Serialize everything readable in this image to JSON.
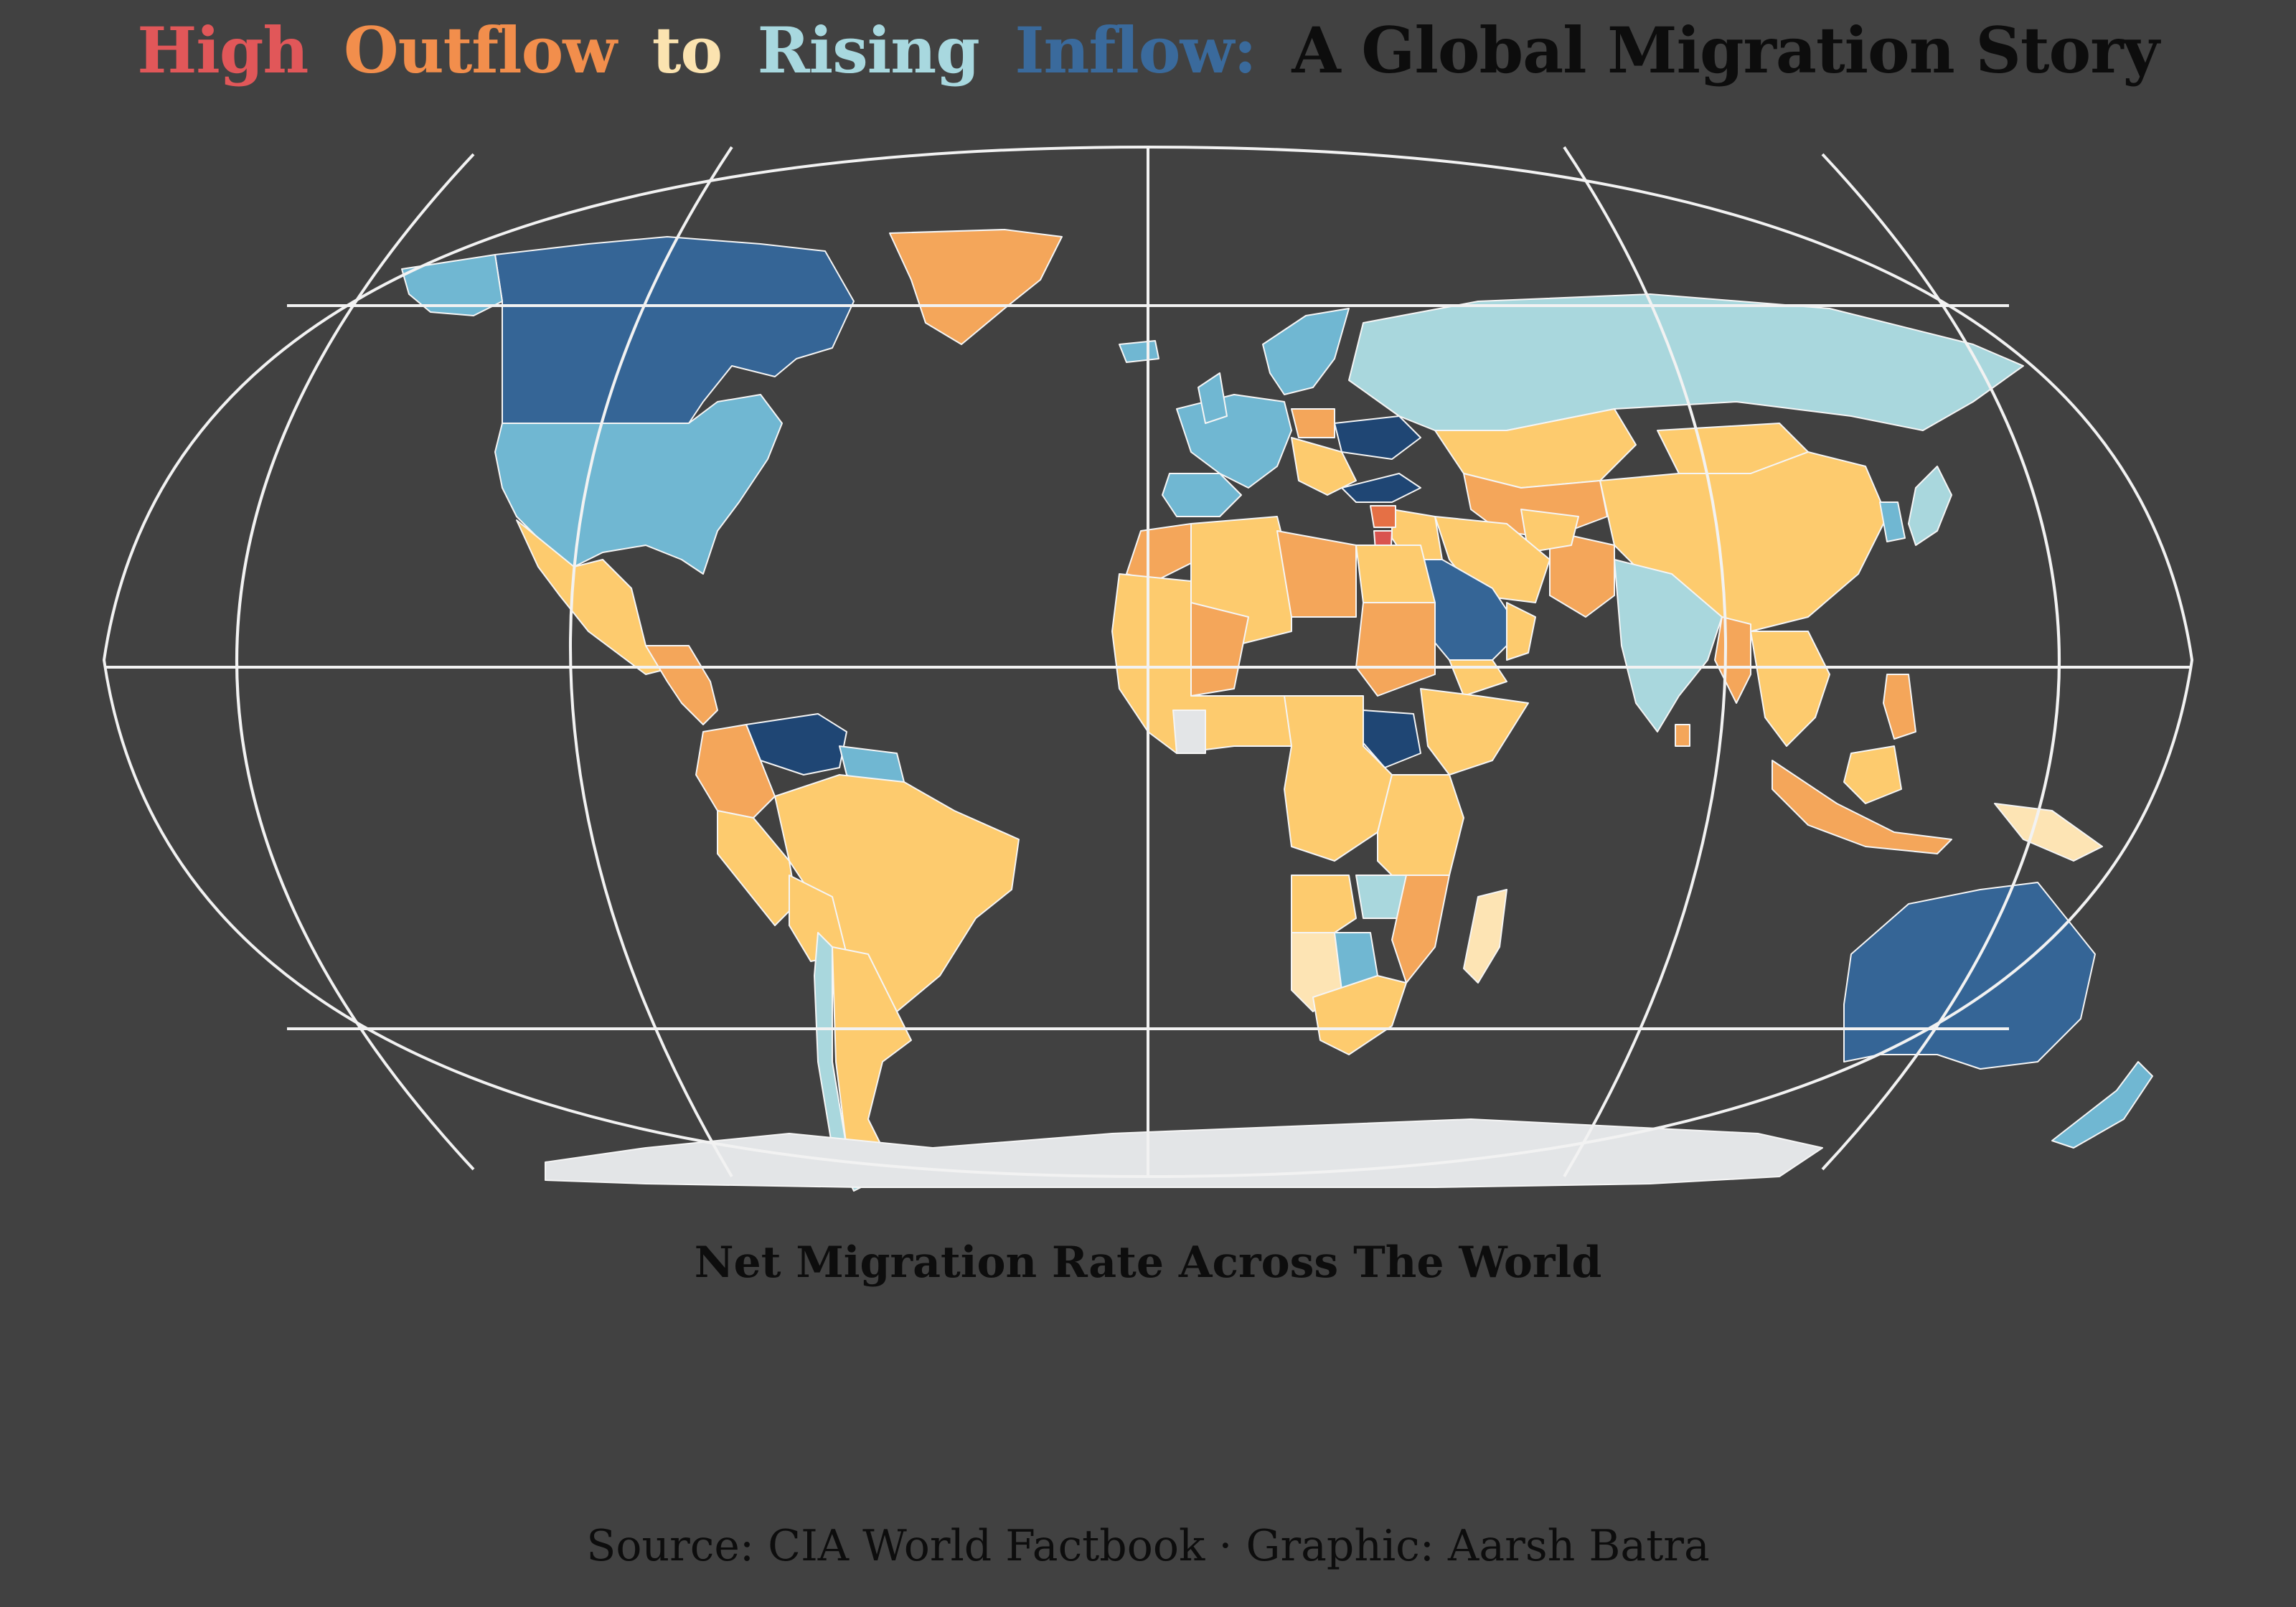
{
  "title": {
    "parts": [
      {
        "text": "High",
        "color": "#e15759"
      },
      {
        "text": "Outflow",
        "color": "#f28e4c"
      },
      {
        "text": "to",
        "color": "#fbe3b0"
      },
      {
        "text": "Rising",
        "color": "#a8d8df"
      },
      {
        "text": "Inflow:",
        "color": "#3a6a9c"
      },
      {
        "text": "A Global Migration Story",
        "color": "#0d0d0d"
      }
    ]
  },
  "subtitle": "Net Migration Rate Across The World",
  "caption": "Source: CIA World Factbook · Graphic: Aarsh Batra",
  "colors": {
    "background": "#414141",
    "graticule": "#f2f2f2",
    "border": "#f5f5f5",
    "strong_inflow": "#1f4674",
    "inflow": "#356596",
    "moderate_inflow": "#70b7d2",
    "slight_inflow": "#a9d7dd",
    "neutral": "#fde4b4",
    "slight_outflow": "#fdcb6e",
    "outflow": "#f4a65a",
    "high_outflow": "#e57045",
    "extreme_outflow": "#d9534f",
    "no_data": "#e3e5e7"
  },
  "regions": [
    {
      "name": "Canada",
      "class": "inflow"
    },
    {
      "name": "United States",
      "class": "moderate_inflow"
    },
    {
      "name": "Alaska",
      "class": "moderate_inflow"
    },
    {
      "name": "Greenland",
      "class": "outflow"
    },
    {
      "name": "Mexico",
      "class": "slight_outflow"
    },
    {
      "name": "Central America",
      "class": "outflow"
    },
    {
      "name": "Venezuela",
      "class": "strong_inflow"
    },
    {
      "name": "Colombia",
      "class": "outflow"
    },
    {
      "name": "Guianas",
      "class": "moderate_inflow"
    },
    {
      "name": "Brazil",
      "class": "slight_outflow"
    },
    {
      "name": "Peru",
      "class": "slight_outflow"
    },
    {
      "name": "Bolivia",
      "class": "slight_outflow"
    },
    {
      "name": "Chile",
      "class": "slight_inflow"
    },
    {
      "name": "Argentina",
      "class": "slight_outflow"
    },
    {
      "name": "Western Europe",
      "class": "moderate_inflow"
    },
    {
      "name": "Iberia",
      "class": "moderate_inflow"
    },
    {
      "name": "Scandinavia",
      "class": "moderate_inflow"
    },
    {
      "name": "United Kingdom",
      "class": "moderate_inflow"
    },
    {
      "name": "Iceland",
      "class": "moderate_inflow"
    },
    {
      "name": "Ukraine",
      "class": "strong_inflow"
    },
    {
      "name": "Poland",
      "class": "outflow"
    },
    {
      "name": "Balkans",
      "class": "slight_outflow"
    },
    {
      "name": "Turkey",
      "class": "strong_inflow"
    },
    {
      "name": "Russia",
      "class": "slight_inflow"
    },
    {
      "name": "Kazakhstan",
      "class": "slight_outflow"
    },
    {
      "name": "Central Asia",
      "class": "outflow"
    },
    {
      "name": "Mongolia",
      "class": "slight_outflow"
    },
    {
      "name": "China",
      "class": "slight_outflow"
    },
    {
      "name": "Korea",
      "class": "moderate_inflow"
    },
    {
      "name": "Japan",
      "class": "slight_inflow"
    },
    {
      "name": "India",
      "class": "slight_inflow"
    },
    {
      "name": "Pakistan",
      "class": "outflow"
    },
    {
      "name": "Afghanistan",
      "class": "slight_outflow"
    },
    {
      "name": "Iran",
      "class": "slight_outflow"
    },
    {
      "name": "Iraq",
      "class": "slight_outflow"
    },
    {
      "name": "Syria",
      "class": "high_outflow"
    },
    {
      "name": "Jordan",
      "class": "extreme_outflow"
    },
    {
      "name": "Saudi Arabia",
      "class": "inflow"
    },
    {
      "name": "Yemen",
      "class": "slight_outflow"
    },
    {
      "name": "Oman",
      "class": "slight_outflow"
    },
    {
      "name": "Southeast Asia",
      "class": "slight_outflow"
    },
    {
      "name": "Myanmar",
      "class": "outflow"
    },
    {
      "name": "Sri Lanka",
      "class": "outflow"
    },
    {
      "name": "Philippines",
      "class": "outflow"
    },
    {
      "name": "Indonesia",
      "class": "outflow"
    },
    {
      "name": "Borneo",
      "class": "slight_outflow"
    },
    {
      "name": "New Guinea",
      "class": "neutral"
    },
    {
      "name": "Australia",
      "class": "inflow"
    },
    {
      "name": "New Zealand",
      "class": "moderate_inflow"
    },
    {
      "name": "Morocco",
      "class": "outflow"
    },
    {
      "name": "Algeria",
      "class": "slight_outflow"
    },
    {
      "name": "Libya",
      "class": "outflow"
    },
    {
      "name": "Egypt",
      "class": "slight_outflow"
    },
    {
      "name": "Sudan",
      "class": "outflow"
    },
    {
      "name": "South Sudan",
      "class": "strong_inflow"
    },
    {
      "name": "Mali",
      "class": "outflow"
    },
    {
      "name": "West Africa",
      "class": "slight_outflow"
    },
    {
      "name": "Ivory Coast",
      "class": "no_data"
    },
    {
      "name": "Horn of Africa",
      "class": "slight_outflow"
    },
    {
      "name": "Central Africa",
      "class": "slight_outflow"
    },
    {
      "name": "East Africa",
      "class": "slight_outflow"
    },
    {
      "name": "Angola",
      "class": "slight_outflow"
    },
    {
      "name": "Namibia",
      "class": "neutral"
    },
    {
      "name": "Botswana",
      "class": "moderate_inflow"
    },
    {
      "name": "Zambia",
      "class": "slight_inflow"
    },
    {
      "name": "Mozambique",
      "class": "outflow"
    },
    {
      "name": "South Africa",
      "class": "slight_outflow"
    },
    {
      "name": "Madagascar",
      "class": "neutral"
    },
    {
      "name": "Antarctica",
      "class": "no_data"
    }
  ]
}
